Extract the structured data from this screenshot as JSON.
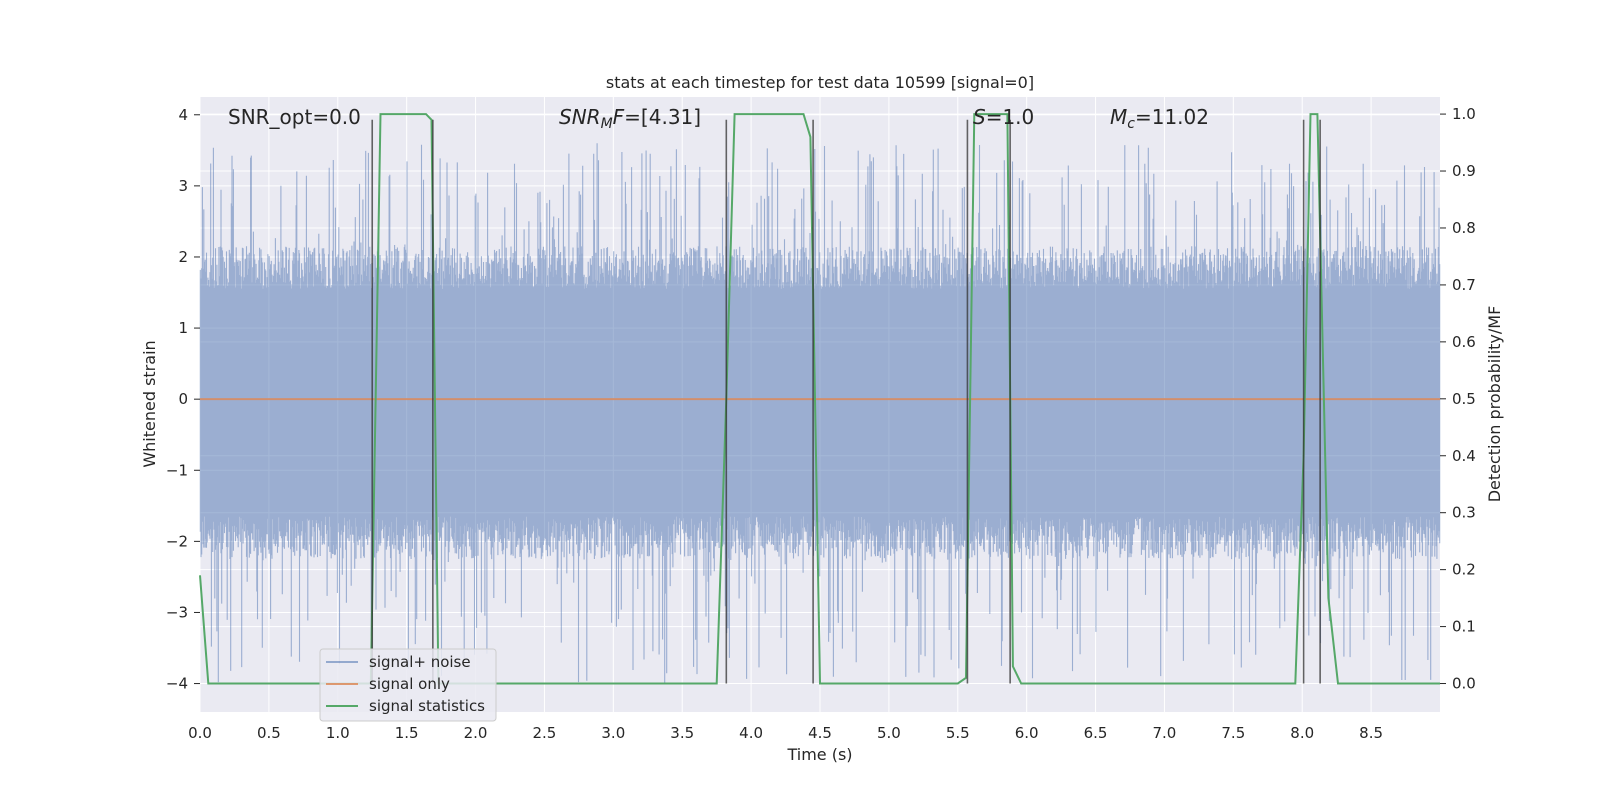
{
  "chart_data": {
    "type": "line",
    "title": "stats at each timestep for test data 10599 [signal=0]",
    "xlabel": "Time (s)",
    "ylabel_left": "Whitened strain",
    "ylabel_right": "Detection probability/MF",
    "xlim": [
      0,
      9.0
    ],
    "ylim_left": [
      -4.4,
      4.25
    ],
    "ylim_right": [
      -0.05,
      1.03
    ],
    "x_ticks": [
      "0.0",
      "0.5",
      "1.0",
      "1.5",
      "2.0",
      "2.5",
      "3.0",
      "3.5",
      "4.0",
      "4.5",
      "5.0",
      "5.5",
      "6.0",
      "6.5",
      "7.0",
      "7.5",
      "8.0",
      "8.5"
    ],
    "x_tick_values": [
      0,
      0.5,
      1.0,
      1.5,
      2.0,
      2.5,
      3.0,
      3.5,
      4.0,
      4.5,
      5.0,
      5.5,
      6.0,
      6.5,
      7.0,
      7.5,
      8.0,
      8.5
    ],
    "y_left_ticks": [
      "−4",
      "−3",
      "−2",
      "−1",
      "0",
      "1",
      "2",
      "3",
      "4"
    ],
    "y_left_tick_values": [
      -4,
      -3,
      -2,
      -1,
      0,
      1,
      2,
      3,
      4
    ],
    "y_right_ticks": [
      "0.0",
      "0.1",
      "0.2",
      "0.3",
      "0.4",
      "0.5",
      "0.6",
      "0.7",
      "0.8",
      "0.9",
      "1.0"
    ],
    "y_right_tick_values": [
      0,
      0.1,
      0.2,
      0.3,
      0.4,
      0.5,
      0.6,
      0.7,
      0.8,
      0.9,
      1.0
    ],
    "grid": true,
    "legend_position": "lower-left",
    "annotations": [
      {
        "key": "snr-opt",
        "text": "SNR_opt=0.0",
        "x": 0.2,
        "y": 4.0
      },
      {
        "key": "snr-mf",
        "text": "SNR_MF=[4.31]",
        "x": 2.6,
        "y": 4.0
      },
      {
        "key": "s-value",
        "text": "S=1.0",
        "x": 5.6,
        "y": 4.0
      },
      {
        "key": "chirp-mass",
        "text": "M_c=11.02",
        "x": 6.6,
        "y": 4.0
      }
    ],
    "series": [
      {
        "name": "signal+ noise",
        "color": "#4c72b0",
        "axis": "left",
        "kind": "noise",
        "envelope_typical": [
          -1.65,
          1.55
        ],
        "range": [
          -4.0,
          3.6
        ]
      },
      {
        "name": "signal only",
        "color": "#dd8452",
        "axis": "left",
        "x": [
          0,
          9.0
        ],
        "y": [
          0,
          0
        ]
      },
      {
        "name": "signal statistics",
        "color": "#55a868",
        "axis": "right",
        "x": [
          0.0,
          0.06,
          0.12,
          1.24,
          1.31,
          1.64,
          1.68,
          1.73,
          3.75,
          3.82,
          3.88,
          4.38,
          4.43,
          4.5,
          5.5,
          5.56,
          5.62,
          5.86,
          5.9,
          5.96,
          7.95,
          8.01,
          8.06,
          8.11,
          8.19,
          8.26,
          9.0
        ],
        "y": [
          0.19,
          0.0,
          0.0,
          0.0,
          1.0,
          1.0,
          0.99,
          0.0,
          0.0,
          0.5,
          1.0,
          1.0,
          0.96,
          0.0,
          0.0,
          0.01,
          1.0,
          1.0,
          0.03,
          0.0,
          0.0,
          0.4,
          1.0,
          1.0,
          0.15,
          0.0,
          0.0
        ]
      }
    ],
    "detection_markers": [
      {
        "x": 1.25,
        "y_top": 0.99,
        "y_bottom": 0.0
      },
      {
        "x": 1.69,
        "y_top": 0.99,
        "y_bottom": 0.0
      },
      {
        "x": 3.82,
        "y_top": 0.99,
        "y_bottom": 0.0
      },
      {
        "x": 4.45,
        "y_top": 0.99,
        "y_bottom": 0.0
      },
      {
        "x": 5.57,
        "y_top": 0.99,
        "y_bottom": 0.0
      },
      {
        "x": 5.88,
        "y_top": 0.99,
        "y_bottom": 0.0
      },
      {
        "x": 8.01,
        "y_top": 0.99,
        "y_bottom": 0.0
      },
      {
        "x": 8.13,
        "y_top": 0.99,
        "y_bottom": 0.0
      }
    ]
  }
}
